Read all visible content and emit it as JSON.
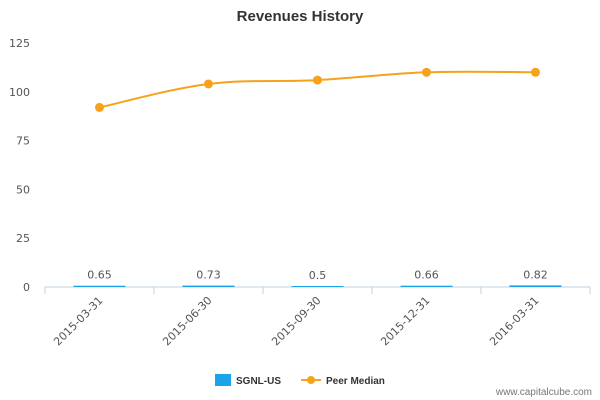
{
  "chart_data": {
    "type": "line",
    "title": "Revenues History",
    "xlabel": "",
    "ylabel": "",
    "ylim": [
      0,
      125
    ],
    "yticks": [
      0,
      25,
      50,
      75,
      100,
      125
    ],
    "categories": [
      "2015-03-31",
      "2015-06-30",
      "2015-09-30",
      "2015-12-31",
      "2016-03-31"
    ],
    "series": [
      {
        "name": "SGNL-US",
        "kind": "bar",
        "color": "#1aa3e8",
        "values": [
          0.65,
          0.73,
          0.5,
          0.66,
          0.82
        ],
        "labels": [
          "0.65",
          "0.73",
          "0.5",
          "0.66",
          "0.82"
        ]
      },
      {
        "name": "Peer Median",
        "kind": "line",
        "color": "#f7a21b",
        "values": [
          92,
          104,
          106,
          110,
          110
        ]
      }
    ],
    "grid": false,
    "legend": "bottom-center"
  },
  "credit": "www.capitalcube.com"
}
